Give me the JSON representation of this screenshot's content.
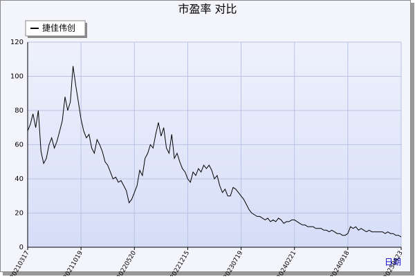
{
  "chart_data": {
    "type": "line",
    "title": "市盈率  对比",
    "x_label": "日期",
    "categories": [
      "20210317",
      null,
      null,
      null,
      null,
      null,
      null,
      null,
      null,
      null,
      null,
      null,
      null,
      null,
      null,
      null,
      null,
      null,
      null,
      null,
      "20211019",
      null,
      null,
      null,
      null,
      null,
      null,
      null,
      null,
      null,
      null,
      null,
      null,
      null,
      null,
      null,
      null,
      null,
      null,
      null,
      "20220520",
      null,
      null,
      null,
      null,
      null,
      null,
      null,
      null,
      null,
      null,
      null,
      null,
      null,
      null,
      null,
      null,
      null,
      null,
      null,
      "20221215",
      null,
      null,
      null,
      null,
      null,
      null,
      null,
      null,
      null,
      null,
      null,
      null,
      null,
      null,
      null,
      null,
      null,
      null,
      null,
      "20230719",
      null,
      null,
      null,
      null,
      null,
      null,
      null,
      null,
      null,
      null,
      null,
      null,
      null,
      null,
      null,
      null,
      null,
      null,
      null,
      "20240221",
      null,
      null,
      null,
      null,
      null,
      null,
      null,
      null,
      null,
      null,
      null,
      null,
      null,
      null,
      null,
      null,
      null,
      null,
      null,
      "20240918",
      null,
      null,
      null,
      null,
      null,
      null,
      null,
      null,
      null,
      null,
      null,
      null,
      null,
      null,
      null,
      null,
      null,
      null,
      null,
      "20250423"
    ],
    "series": [
      {
        "name": "捷佳伟创",
        "color": "#000000",
        "values": [
          68,
          72,
          78,
          70,
          80,
          56,
          49,
          52,
          60,
          64,
          58,
          62,
          68,
          74,
          88,
          80,
          85,
          106,
          95,
          85,
          75,
          68,
          64,
          66,
          58,
          55,
          63,
          60,
          56,
          50,
          48,
          44,
          40,
          41,
          38,
          39,
          36,
          33,
          26,
          28,
          32,
          36,
          45,
          42,
          52,
          55,
          60,
          58,
          66,
          73,
          65,
          70,
          58,
          55,
          66,
          52,
          55,
          50,
          46,
          44,
          40,
          38,
          44,
          42,
          46,
          44,
          48,
          46,
          48,
          45,
          40,
          42,
          36,
          32,
          34,
          30,
          30,
          35,
          34,
          32,
          30,
          28,
          25,
          22,
          20,
          19,
          18,
          18,
          17,
          16,
          17,
          15,
          16,
          15,
          17,
          16,
          14,
          15,
          15,
          16,
          16,
          15,
          14,
          13,
          13,
          12,
          12,
          12,
          11,
          11,
          11,
          10,
          10,
          9,
          10,
          9,
          8,
          8,
          7,
          7,
          8,
          12,
          11,
          12,
          10,
          11,
          10,
          9,
          10,
          9,
          9,
          9,
          9,
          9,
          8,
          9,
          8,
          8,
          7,
          7,
          6
        ]
      }
    ],
    "ylim": [
      0,
      120
    ],
    "yticks": [
      0,
      20,
      40,
      60,
      80,
      100,
      120
    ],
    "grid": true,
    "legend": "top-left"
  }
}
